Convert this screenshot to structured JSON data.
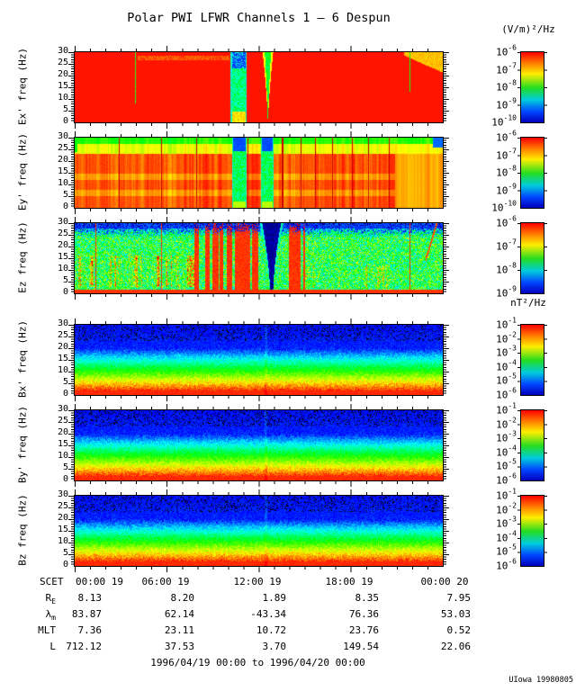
{
  "title": "Polar PWI LFWR Channels 1 — 6 Despun",
  "units": {
    "electric": "(V/m)²/Hz",
    "magnetic": "nT²/Hz"
  },
  "credit": "UIowa 19980805",
  "chart_data": {
    "type": "heatmap",
    "time_range": "1996/04/19 00:00 to 1996/04/20 00:00",
    "x_axis": {
      "label": "SCET",
      "ticks": [
        "00:00 19",
        "06:00 19",
        "12:00 19",
        "18:00 19",
        "00:00 20"
      ],
      "minor_tick_hours": 1,
      "major_tick_hours": 6
    },
    "y_axis": {
      "label_unit": "freq (Hz)",
      "ticks": [
        30,
        25,
        20,
        15,
        10,
        5,
        0
      ],
      "range": [
        0,
        30
      ]
    },
    "colorbar_base": "10",
    "panels": [
      {
        "id": "ex",
        "ylabel": "Ex' freq (Hz)",
        "units": "(V/m)²/Hz",
        "painter": "ex",
        "colorbar_exponents": [
          "-6",
          "-7",
          "-8",
          "-9",
          "-10"
        ],
        "features": {
          "streak": [
            0.17,
            0.42
          ],
          "wedge_start": 0.895,
          "spike_t": 0.912,
          "line_t": 0.164,
          "funnel_t": 0.525,
          "dropout": [
            0.424,
            0.467
          ]
        }
      },
      {
        "id": "ey",
        "ylabel": "Ey' freq (Hz)",
        "units": "(V/m)²/Hz",
        "painter": "ey",
        "colorbar_exponents": [
          "-6",
          "-7",
          "-8",
          "-9",
          "-10"
        ],
        "features": {
          "dropouts": [
            [
              0.428,
              0.468
            ],
            [
              0.506,
              0.54
            ]
          ],
          "dark_lines": [
            0.12,
            0.235,
            0.33,
            0.47,
            0.565,
            0.615,
            0.655,
            0.7,
            0.755,
            0.8,
            0.855
          ],
          "yellow_start": 0.872
        }
      },
      {
        "id": "ez",
        "ylabel": "Ez freq (Hz)",
        "units": "(V/m)²/Hz",
        "painter": "ez",
        "colorbar_exponents": [
          "-6",
          "-7",
          "-8",
          "-9"
        ],
        "features": {
          "red_columns": [
            [
              0.325,
              0.337
            ],
            [
              0.355,
              0.367
            ],
            [
              0.374,
              0.391
            ],
            [
              0.394,
              0.403
            ],
            [
              0.413,
              0.428
            ],
            [
              0.435,
              0.477
            ],
            [
              0.482,
              0.499
            ],
            [
              0.582,
              0.614
            ],
            [
              0.621,
              0.627
            ]
          ],
          "thin_lines": [
            0.056,
            0.235,
            0.912
          ],
          "funnel_t": 0.535,
          "diag_t": 0.985
        }
      },
      {
        "id": "bx",
        "ylabel": "Bx' freq (Hz)",
        "units": "nT²/Hz",
        "painter": "b",
        "colorbar_exponents": [
          "-1",
          "-2",
          "-3",
          "-4",
          "-5",
          "-6"
        ],
        "features": {
          "enhance_t": 0.52
        }
      },
      {
        "id": "by",
        "ylabel": "By' freq (Hz)",
        "units": "nT²/Hz",
        "painter": "b",
        "colorbar_exponents": [
          "-1",
          "-2",
          "-3",
          "-4",
          "-5",
          "-6"
        ],
        "features": {
          "enhance_t": 0.52
        }
      },
      {
        "id": "bz",
        "ylabel": "Bz freq (Hz)",
        "units": "nT²/Hz",
        "painter": "b",
        "colorbar_exponents": [
          "-1",
          "-2",
          "-3",
          "-4",
          "-5",
          "-6"
        ],
        "features": {
          "enhance_t": 0.52
        }
      }
    ],
    "ephemeris": {
      "rows": [
        {
          "label": "R",
          "sub": "E",
          "values": [
            "8.13",
            "8.20",
            "1.89",
            "8.35",
            "7.95"
          ]
        },
        {
          "label": "λ",
          "sub": "m",
          "values": [
            "83.87",
            "62.14",
            "-43.34",
            "76.36",
            "53.03"
          ]
        },
        {
          "label": "MLT",
          "sub": "",
          "values": [
            "7.36",
            "23.11",
            "10.72",
            "23.76",
            "0.52"
          ]
        },
        {
          "label": "L",
          "sub": "",
          "values": [
            "712.12",
            "37.53",
            "3.70",
            "149.54",
            "22.06"
          ]
        }
      ]
    }
  }
}
